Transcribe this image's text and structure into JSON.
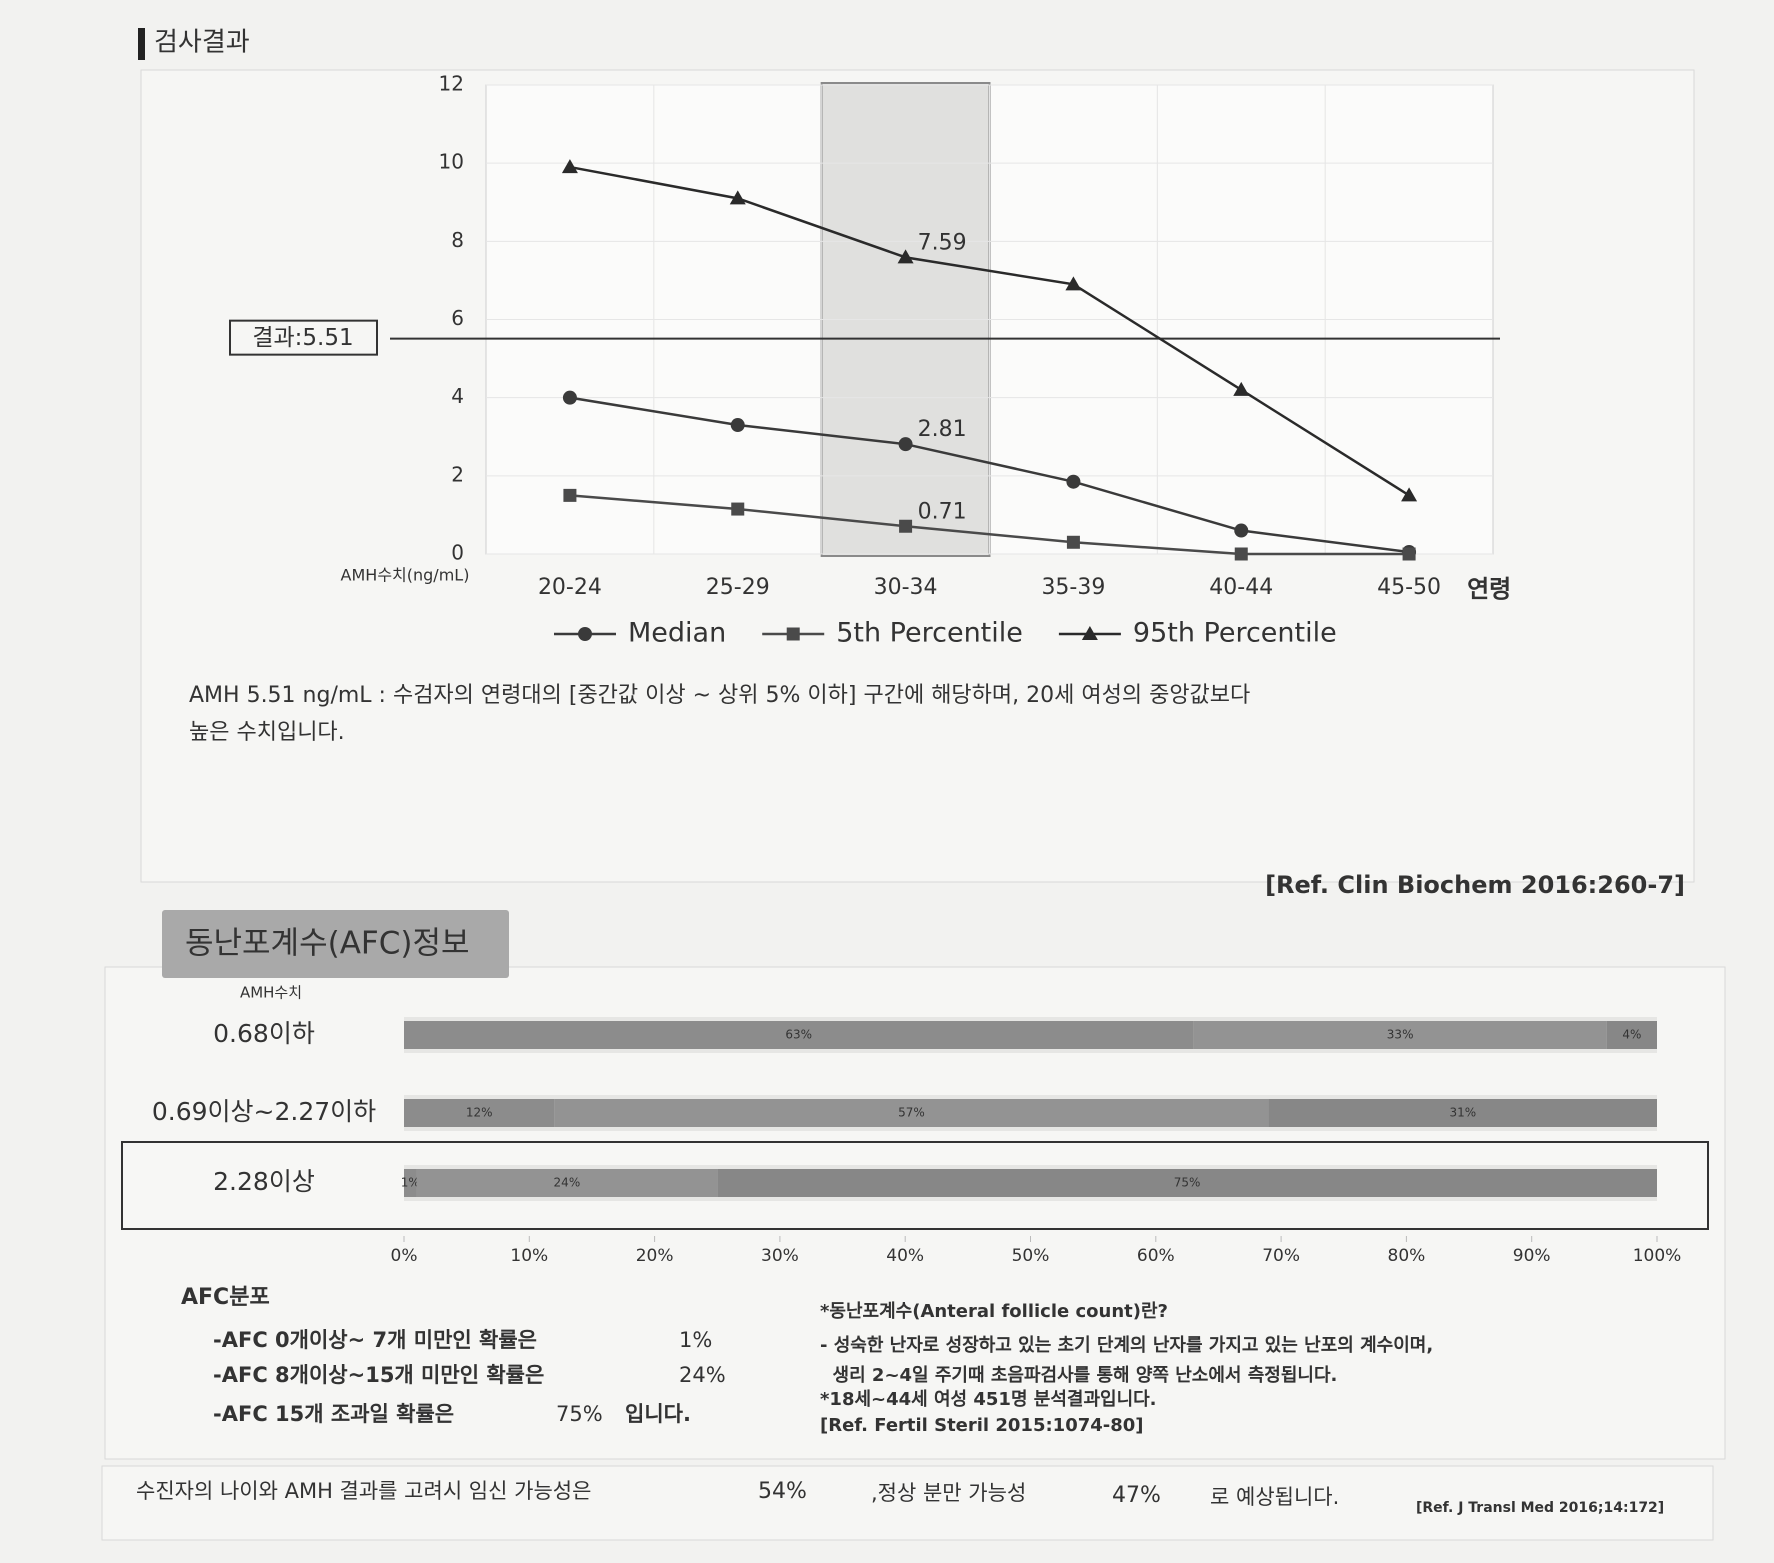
{
  "header": {
    "title": "검사결과"
  },
  "chart_data": [
    {
      "type": "line",
      "categories": [
        "20-24",
        "25-29",
        "30-34",
        "35-39",
        "40-44",
        "45-50"
      ],
      "x_label": "연령",
      "y_label": "AMH수치(ng/mL)",
      "ylim": [
        0,
        12
      ],
      "yticks": [
        0,
        2,
        4,
        6,
        8,
        10,
        12
      ],
      "grid": true,
      "highlight_index": 2,
      "reference_line": {
        "value": 5.51,
        "label": "결과:5.51"
      },
      "series": [
        {
          "name": "Median",
          "color": "#3a3a3a",
          "marker": "circle",
          "values": [
            4.0,
            3.3,
            2.81,
            1.85,
            0.6,
            0.05
          ],
          "value_labels": [
            null,
            null,
            "2.81",
            null,
            null,
            null
          ]
        },
        {
          "name": "5th Percentile",
          "color": "#4a4a4a",
          "marker": "square",
          "values": [
            1.5,
            1.15,
            0.71,
            0.3,
            0.0,
            0.0
          ],
          "value_labels": [
            null,
            null,
            "0.71",
            null,
            null,
            null
          ]
        },
        {
          "name": "95th Percentile",
          "color": "#2a2a2a",
          "marker": "triangle",
          "values": [
            9.9,
            9.1,
            7.59,
            6.9,
            4.2,
            1.5
          ],
          "value_labels": [
            null,
            null,
            "7.59",
            null,
            null,
            null
          ]
        }
      ]
    },
    {
      "type": "bar",
      "orientation": "horizontal",
      "stacked": true,
      "y_label": "AMH수치",
      "categories": [
        "0.68이하",
        "0.69이상~2.27이하",
        "2.28이상"
      ],
      "highlight_index": 2,
      "xlim": [
        0,
        100
      ],
      "xticks": [
        {
          "value": 0,
          "label": "0%"
        },
        {
          "value": 10,
          "label": "10%"
        },
        {
          "value": 20,
          "label": "20%"
        },
        {
          "value": 30,
          "label": "30%"
        },
        {
          "value": 40,
          "label": "40%"
        },
        {
          "value": 50,
          "label": "50%"
        },
        {
          "value": 60,
          "label": "60%"
        },
        {
          "value": 70,
          "label": "70%"
        },
        {
          "value": 80,
          "label": "80%"
        },
        {
          "value": 90,
          "label": "90%"
        },
        {
          "value": 100,
          "label": "100%"
        }
      ],
      "series": [
        {
          "color": "#8c8c8c",
          "values": [
            63,
            12,
            1
          ],
          "value_labels": [
            "63%",
            "12%",
            "1%"
          ]
        },
        {
          "color": "#939393",
          "values": [
            33,
            57,
            24
          ],
          "value_labels": [
            "33%",
            "57%",
            "24%"
          ]
        },
        {
          "color": "#878787",
          "values": [
            4,
            31,
            75
          ],
          "value_labels": [
            "4%",
            "31%",
            "75%"
          ]
        }
      ]
    }
  ],
  "amh_result": {
    "description": [
      "AMH  5.51 ng/mL : 수검자의 연령대의 [중간값 이상 ~ 상위 5% 이하] 구간에 해당하며, 20세 여성의 중앙값보다",
      "높은 수치입니다."
    ],
    "reference": "[Ref. Clin Biochem 2016:260-7]"
  },
  "afc": {
    "title": "동난포계수(AFC)정보",
    "distribution": {
      "title": "AFC분포",
      "lines": [
        {
          "text": "-AFC  0개이상~ 7개 미만인 확률은",
          "value": "1%"
        },
        {
          "text": "-AFC  8개이상~15개 미만인 확률은",
          "value": "24%"
        },
        {
          "text": "-AFC  15개 조과일 확률은",
          "value": "75%",
          "suffix": "입니다."
        }
      ]
    },
    "notes": [
      "*동난포계수(Anteral follicle count)란?",
      "- 성숙한 난자로 성장하고 있는 초기 단계의 난자를 가지고 있는 난포의 계수이며,",
      "  생리 2~4일 주기때 초음파검사를 통해 양쪽 난소에서 측정됩니다.",
      "*18세~44세 여성 451명 분석결과입니다.",
      "[Ref. Fertil Steril 2015:1074-80]"
    ]
  },
  "footer": {
    "lead": "수진자의 나이와 AMH 결과를 고려시 임신 가능성은",
    "pregnancy": "54%",
    "middle": ",정상 분만 가능성",
    "delivery": "47%",
    "tail": "로 예상됩니다.",
    "reference": "[Ref. J Transl Med 2016;14:172]"
  }
}
